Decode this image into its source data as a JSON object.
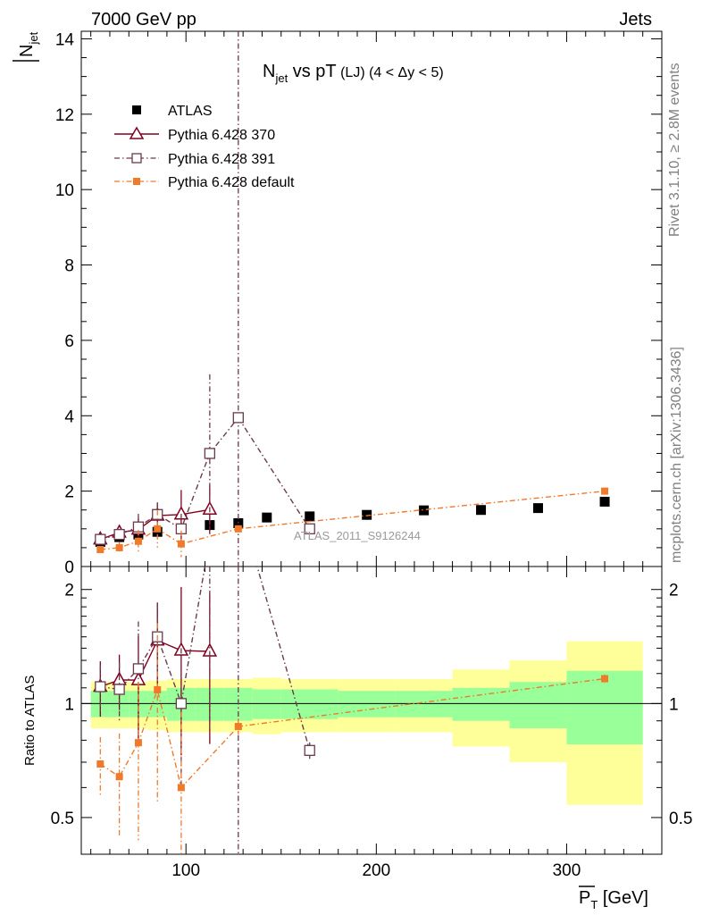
{
  "header": {
    "left": "7000 GeV pp",
    "right": "Jets"
  },
  "side_labels": {
    "rivet": "Rivet 3.1.10, ≥ 2.8M events",
    "mcplots": "mcplots.cern.ch [arXiv:1306.3436]"
  },
  "chart_data": {
    "type": "scatter",
    "title_main": "N",
    "title_sub": "jet",
    "title_rest": " vs pT",
    "title_detail": " (LJ) (4 < Δy < 5)",
    "ylabel_main": "N",
    "ylabel_sub": "jet",
    "xlabel_main": "P",
    "xlabel_sub": "T",
    "xlabel_unit": " [GeV]",
    "ratio_ylabel": "Ratio to ATLAS",
    "watermark": "ATLAS_2011_S9126244",
    "xlim": [
      45,
      350
    ],
    "ylim": [
      0,
      14.2
    ],
    "ratio_ylim": [
      0.4,
      2.3
    ],
    "yticks": [
      "0",
      "2",
      "4",
      "6",
      "8",
      "10",
      "12",
      "14"
    ],
    "xticks": [
      "100",
      "200",
      "300"
    ],
    "ratio_yticks": [
      "0.5",
      "1",
      "2"
    ],
    "legend": [
      "ATLAS",
      "Pythia 6.428 370",
      "Pythia 6.428 391",
      "Pythia 6.428 default"
    ],
    "series": [
      {
        "name": "ATLAS",
        "color": "#000000",
        "x": [
          55,
          65,
          75,
          85,
          97.5,
          112.5,
          127.5,
          142.5,
          165,
          195,
          225,
          255,
          285,
          320
        ],
        "y": [
          0.65,
          0.78,
          0.85,
          0.92,
          1.0,
          1.1,
          1.15,
          1.3,
          1.33,
          1.37,
          1.49,
          1.5,
          1.55,
          1.72
        ]
      },
      {
        "name": "Pythia 6.428 370",
        "color": "#800020",
        "x": [
          55,
          65,
          75,
          85,
          97.5,
          112.5
        ],
        "y": [
          0.72,
          0.9,
          0.98,
          1.35,
          1.38,
          1.51
        ],
        "err": [
          0.12,
          0.15,
          0.3,
          0.35,
          0.65,
          0.65
        ]
      },
      {
        "name": "Pythia 6.428 391",
        "color": "#6b3a4e",
        "x": [
          55,
          65,
          75,
          85,
          97.5,
          112.5,
          127.5,
          165
        ],
        "y": [
          0.72,
          0.85,
          1.05,
          1.38,
          1.0,
          3.0,
          3.95,
          1.0
        ],
        "err": [
          0.1,
          0.15,
          0.35,
          0.3,
          0.4,
          2.1,
          12,
          0.05
        ]
      },
      {
        "name": "Pythia 6.428 default",
        "color": "#f07a2a",
        "x": [
          55,
          65,
          75,
          85,
          97.5,
          127.5,
          320
        ],
        "y": [
          0.45,
          0.5,
          0.67,
          1.0,
          0.6,
          1.0,
          2.0
        ],
        "err": [
          0.08,
          0.15,
          0.3,
          0.5,
          0.35,
          0.05,
          0.05
        ]
      }
    ],
    "ratio_band": {
      "edges": [
        50,
        60,
        70,
        80,
        90,
        105,
        120,
        135,
        150,
        180,
        210,
        240,
        270,
        300,
        340
      ],
      "inner": [
        0.08,
        0.08,
        0.08,
        0.08,
        0.1,
        0.1,
        0.1,
        0.09,
        0.09,
        0.08,
        0.08,
        0.1,
        0.14,
        0.22
      ],
      "outer": [
        0.14,
        0.14,
        0.14,
        0.15,
        0.16,
        0.16,
        0.16,
        0.17,
        0.16,
        0.16,
        0.16,
        0.23,
        0.3,
        0.46
      ]
    }
  }
}
